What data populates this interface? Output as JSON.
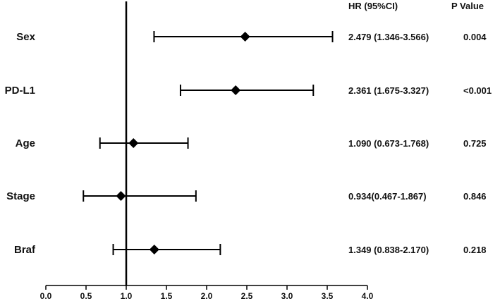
{
  "chart_data": {
    "type": "forest",
    "columns": {
      "hr_header": "HR (95%CI)",
      "p_header": "P Value"
    },
    "reference_line": 1.0,
    "xlim": [
      0.0,
      4.0
    ],
    "xticks": [
      "0.0",
      "0.5",
      "1.0",
      "1.5",
      "2.0",
      "2.5",
      "3.0",
      "3.5",
      "4.0"
    ],
    "rows": [
      {
        "label": "Sex",
        "hr": 2.479,
        "lo": 1.346,
        "hi": 3.566,
        "hr_text": "2.479 (1.346-3.566)",
        "p_text": "0.004"
      },
      {
        "label": "PD-L1",
        "hr": 2.361,
        "lo": 1.675,
        "hi": 3.327,
        "hr_text": "2.361 (1.675-3.327)",
        "p_text": "<0.001"
      },
      {
        "label": "Age",
        "hr": 1.09,
        "lo": 0.673,
        "hi": 1.768,
        "hr_text": "1.090 (0.673-1.768)",
        "p_text": "0.725"
      },
      {
        "label": "Stage",
        "hr": 0.934,
        "lo": 0.467,
        "hi": 1.867,
        "hr_text": "0.934(0.467-1.867)",
        "p_text": "0.846"
      },
      {
        "label": "Braf",
        "hr": 1.349,
        "lo": 0.838,
        "hi": 2.17,
        "hr_text": "1.349 (0.838-2.170)",
        "p_text": "0.218"
      }
    ]
  }
}
